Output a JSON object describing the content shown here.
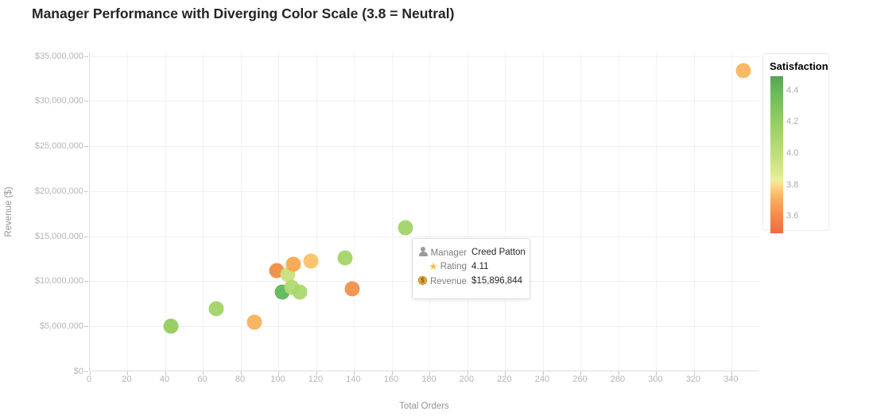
{
  "title": "Manager Performance with Diverging Color Scale (3.8 = Neutral)",
  "chart_data": {
    "type": "scatter",
    "title": "Manager Performance with Diverging Color Scale (3.8 = Neutral)",
    "xlabel": "Total Orders",
    "ylabel": "Revenue ($)",
    "xlim": [
      0,
      355
    ],
    "ylim": [
      0,
      35400000
    ],
    "grid": true,
    "x_ticks": [
      0,
      20,
      40,
      60,
      80,
      100,
      120,
      140,
      160,
      180,
      200,
      220,
      240,
      260,
      280,
      300,
      320,
      340
    ],
    "y_ticks": [
      {
        "value": 0,
        "label": "$0"
      },
      {
        "value": 5000000,
        "label": "$5,000,000"
      },
      {
        "value": 10000000,
        "label": "$10,000,000"
      },
      {
        "value": 15000000,
        "label": "$15,000,000"
      },
      {
        "value": 20000000,
        "label": "$20,000,000"
      },
      {
        "value": 25000000,
        "label": "$25,000,000"
      },
      {
        "value": 30000000,
        "label": "$30,000,000"
      },
      {
        "value": 35000000,
        "label": "$35,000,000"
      }
    ],
    "points": [
      {
        "orders": 43,
        "revenue": 5000000,
        "satisfaction": 4.2,
        "color": "#92cd5f"
      },
      {
        "orders": 67,
        "revenue": 7000000,
        "satisfaction": 4.1,
        "color": "#a2d465"
      },
      {
        "orders": 87,
        "revenue": 5500000,
        "satisfaction": 3.7,
        "color": "#f8b15c"
      },
      {
        "orders": 99,
        "revenue": 11200000,
        "satisfaction": 3.55,
        "color": "#f18c43"
      },
      {
        "orders": 105,
        "revenue": 10700000,
        "satisfaction": 3.9,
        "color": "#c9e27e"
      },
      {
        "orders": 108,
        "revenue": 11900000,
        "satisfaction": 3.65,
        "color": "#f8a851"
      },
      {
        "orders": 102,
        "revenue": 8800000,
        "satisfaction": 4.35,
        "color": "#5eb75c"
      },
      {
        "orders": 107,
        "revenue": 9300000,
        "satisfaction": 4.0,
        "color": "#b1da71"
      },
      {
        "orders": 111,
        "revenue": 8800000,
        "satisfaction": 4.0,
        "color": "#abd76c"
      },
      {
        "orders": 117,
        "revenue": 12200000,
        "satisfaction": 3.75,
        "color": "#fbc166"
      },
      {
        "orders": 135,
        "revenue": 12600000,
        "satisfaction": 4.1,
        "color": "#a4d566"
      },
      {
        "orders": 139,
        "revenue": 9200000,
        "satisfaction": 3.55,
        "color": "#f0914a"
      },
      {
        "orders": 167,
        "revenue": 15896844,
        "satisfaction": 4.11,
        "color": "#a0d468",
        "manager": "Creed Patton"
      },
      {
        "orders": 346,
        "revenue": 33400000,
        "satisfaction": 3.7,
        "color": "#f9b55e"
      }
    ],
    "legend": {
      "title": "Satisfaction",
      "domain": [
        3.49,
        4.49
      ],
      "ticks": [
        4.4,
        4.2,
        4.0,
        3.8,
        3.6
      ],
      "gradient": [
        {
          "pos": 0,
          "color": "#56a357"
        },
        {
          "pos": 12,
          "color": "#6fbc5b"
        },
        {
          "pos": 25,
          "color": "#8cca60"
        },
        {
          "pos": 40,
          "color": "#abd76c"
        },
        {
          "pos": 52,
          "color": "#c5e17b"
        },
        {
          "pos": 62,
          "color": "#dcea8c"
        },
        {
          "pos": 66,
          "color": "#ecf09c"
        },
        {
          "pos": 70,
          "color": "#fdd683"
        },
        {
          "pos": 78,
          "color": "#fbae5d"
        },
        {
          "pos": 88,
          "color": "#f68c4c"
        },
        {
          "pos": 100,
          "color": "#ee6a40"
        }
      ]
    }
  },
  "tooltip": {
    "rows": [
      {
        "icon": "person-icon",
        "label": "Manager",
        "value": "Creed Patton"
      },
      {
        "icon": "star-icon",
        "label": "Rating",
        "value": "4.11"
      },
      {
        "icon": "money-icon",
        "label": "Revenue",
        "value": "$15,896,844"
      }
    ]
  }
}
